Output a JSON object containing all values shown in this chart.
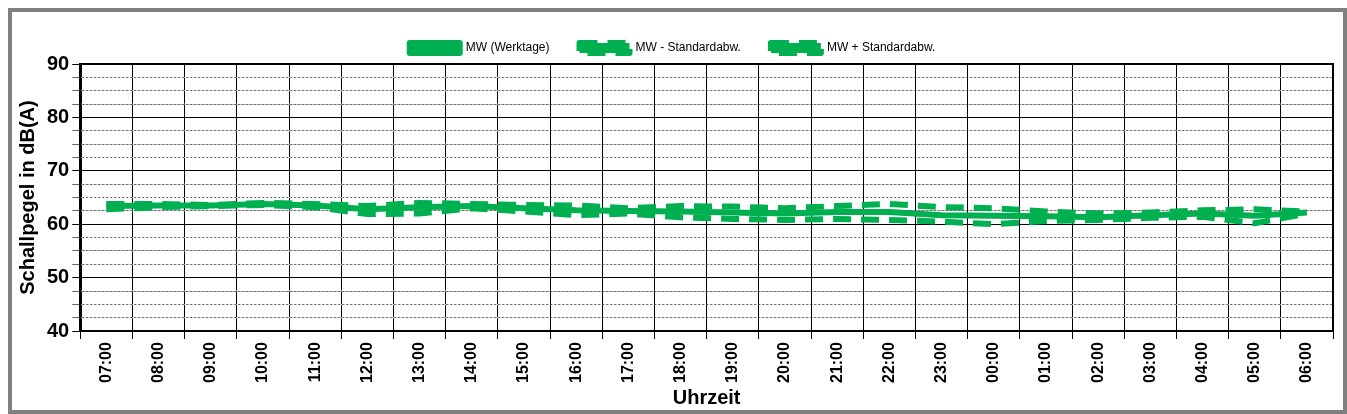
{
  "chart_data": {
    "type": "line",
    "xlabel": "Uhrzeit",
    "ylabel": "Schallpegel in dB(A)",
    "categories": [
      "07:00",
      "08:00",
      "09:00",
      "10:00",
      "11:00",
      "12:00",
      "13:00",
      "14:00",
      "15:00",
      "16:00",
      "17:00",
      "18:00",
      "19:00",
      "20:00",
      "21:00",
      "22:00",
      "23:00",
      "00:00",
      "01:00",
      "02:00",
      "03:00",
      "04:00",
      "05:00",
      "06:00"
    ],
    "series": [
      {
        "name": "MW (Werktage)",
        "color": "#00b050",
        "line_style": "solid",
        "values": [
          63.4,
          63.5,
          63.5,
          63.8,
          63.5,
          62.8,
          63.2,
          63.4,
          63.0,
          62.6,
          62.5,
          62.4,
          62.2,
          62.0,
          62.3,
          62.3,
          61.7,
          61.6,
          61.5,
          61.3,
          61.7,
          62.0,
          61.6,
          62.2
        ]
      },
      {
        "name": "MW - Standardabw.",
        "color": "#00b050",
        "line_style": "dashed",
        "values": [
          62.8,
          63.2,
          63.4,
          63.6,
          63.2,
          61.9,
          62.0,
          63.0,
          62.4,
          61.7,
          62.0,
          61.3,
          61.0,
          60.8,
          61.0,
          60.8,
          60.5,
          60.0,
          60.6,
          60.8,
          61.2,
          61.4,
          60.2,
          62.0
        ]
      },
      {
        "name": "MW + Standardabw.",
        "color": "#00b050",
        "line_style": "dashed",
        "values": [
          63.8,
          63.8,
          63.6,
          64.0,
          63.8,
          63.4,
          64.0,
          63.8,
          63.6,
          63.5,
          63.0,
          63.4,
          63.3,
          63.0,
          63.4,
          63.8,
          63.2,
          63.0,
          62.4,
          62.0,
          62.2,
          62.6,
          62.8,
          62.4
        ]
      }
    ],
    "ylim": [
      40,
      90
    ],
    "yticks": [
      40,
      {
        "value": 42.5,
        "label": null
      },
      {
        "value": 45,
        "label": null
      },
      {
        "value": 47.5,
        "label": null
      },
      50,
      {
        "value": 52.5,
        "label": null
      },
      {
        "value": 55,
        "label": null
      },
      {
        "value": 57.5,
        "label": null
      },
      60,
      {
        "value": 62.5,
        "label": null
      },
      {
        "value": 65,
        "label": null
      },
      {
        "value": 67.5,
        "label": null
      },
      70,
      {
        "value": 72.5,
        "label": null
      },
      {
        "value": 75,
        "label": null
      },
      {
        "value": 77.5,
        "label": null
      },
      80,
      {
        "value": 82.5,
        "label": null
      },
      {
        "value": 85,
        "label": null
      },
      {
        "value": 87.5,
        "label": null
      },
      90
    ],
    "grid": true,
    "legend": "top",
    "marker": "none"
  }
}
